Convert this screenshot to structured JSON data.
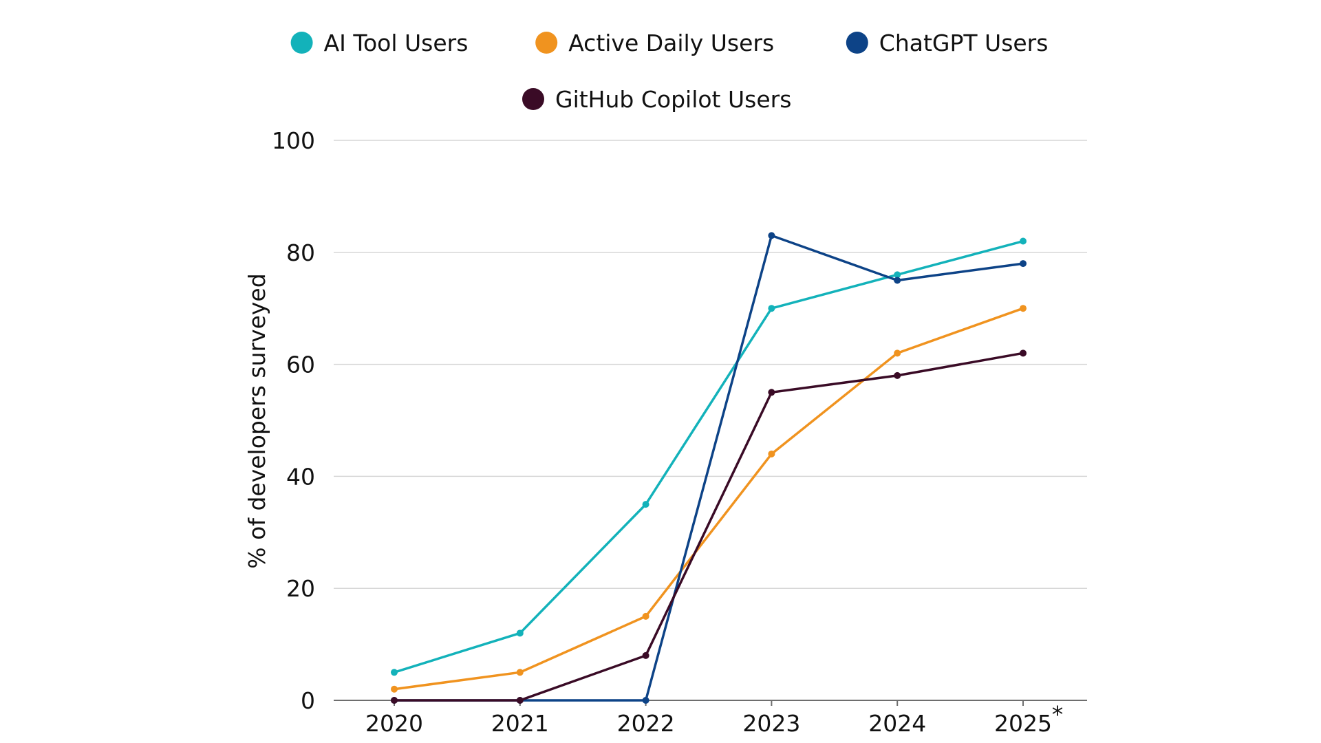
{
  "chart_data": {
    "type": "line",
    "title": "",
    "xlabel": "",
    "ylabel": "% of developers surveyed",
    "categories": [
      "2020",
      "2021",
      "2022",
      "2023",
      "2024",
      "2025"
    ],
    "footnote_marker": "*",
    "ylim": [
      0,
      100
    ],
    "yticks": [
      0,
      20,
      40,
      60,
      80,
      100
    ],
    "grid": true,
    "legend_position": "top",
    "series": [
      {
        "name": "AI Tool Users",
        "color": "#13b2ba",
        "values": [
          5,
          12,
          35,
          70,
          76,
          82
        ]
      },
      {
        "name": "Active Daily Users",
        "color": "#f0931f",
        "values": [
          2,
          5,
          15,
          44,
          62,
          70
        ]
      },
      {
        "name": "ChatGPT Users",
        "color": "#0d4387",
        "values": [
          0,
          0,
          0,
          83,
          75,
          78
        ]
      },
      {
        "name": "GitHub Copilot Users",
        "color": "#3a0b26",
        "values": [
          0,
          0,
          8,
          55,
          58,
          62
        ]
      }
    ]
  }
}
